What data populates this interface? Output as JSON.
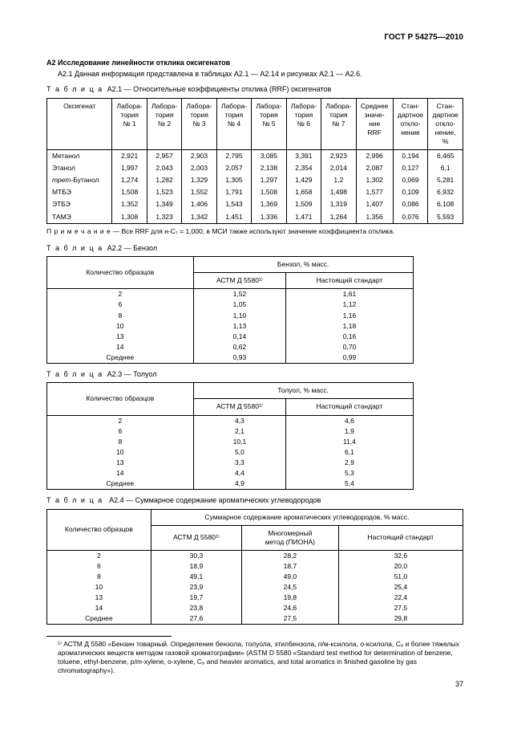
{
  "header": "ГОСТ Р 54275—2010",
  "section": {
    "title": "А2 Исследование линейности отклика оксигенатов",
    "text": "А2.1 Данная информация представлена в таблицах А2.1 — А2.14 и рисунках А2.1 — А2.6."
  },
  "table1": {
    "caption_prefix": "Т а б л и ц а",
    "caption": "А2.1 — Относительные коэффициенты отклика (RRF) оксигенатов",
    "headers": [
      "Оксигенат",
      "Лабора-\nтория\n№ 1",
      "Лабора-\nтория\n№ 2",
      "Лабора-\nтория\n№ 3",
      "Лабора-\nтория\n№ 4",
      "Лабора-\nтория\n№ 5",
      "Лабора-\nтория\n№ 6",
      "Лабора-\nтория\n№ 7",
      "Среднее\nзначе-\nние\nRRF",
      "Стан-\nдартное\nоткло-\nнение",
      "Стан-\nдартное\nоткло-\nнение,\n%"
    ],
    "rows": [
      [
        "Метанол",
        "2,921",
        "2,957",
        "2,903",
        "2,795",
        "3,085",
        "3,391",
        "2,923",
        "2,996",
        "0,194",
        "6,465"
      ],
      [
        "Этанол",
        "1,997",
        "2,043",
        "2,003",
        "2,057",
        "2,138",
        "2,354",
        "2,014",
        "2,087",
        "0,127",
        "6,1"
      ],
      [
        "трет-Бутанол",
        "1,274",
        "1,282",
        "1,329",
        "1,305",
        "1,297",
        "1,429",
        "1,2",
        "1,302",
        "0,069",
        "5,281"
      ],
      [
        "МТБЭ",
        "1,508",
        "1,523",
        "1,552",
        "1,791",
        "1,508",
        "1,658",
        "1,498",
        "1,577",
        "0,109",
        "6,932"
      ],
      [
        "ЭТБЭ",
        "1,352",
        "1,349",
        "1,406",
        "1,543",
        "1,369",
        "1,509",
        "1,319",
        "1,407",
        "0,086",
        "6,108"
      ],
      [
        "ТАМЭ",
        "1,308",
        "1,323",
        "1,342",
        "1,451",
        "1,336",
        "1,471",
        "1,264",
        "1,356",
        "0,076",
        "5,593"
      ]
    ],
    "note_prefix": "П р и м е ч а н и е",
    "note": " — Все RRF  для н-C₇ = 1,000; в МСИ также используют значение коэффициента отклика."
  },
  "table2": {
    "caption_prefix": "Т а б л и ц а",
    "caption": "А2.2 — Бензол",
    "group_header": "Бензол, % масс.",
    "col_header": "Количество образцов",
    "sub_headers": [
      "АСТМ Д 5580¹⁾",
      "Настоящий стандарт"
    ],
    "rows": [
      [
        "2",
        "1,52",
        "1,61"
      ],
      [
        "6",
        "1,05",
        "1,12"
      ],
      [
        "8",
        "1,10",
        "1,16"
      ],
      [
        "10",
        "1,13",
        "1,18"
      ],
      [
        "13",
        "0,14",
        "0,16"
      ],
      [
        "14",
        "0,62",
        "0,70"
      ],
      [
        "Среднее",
        "0,93",
        "0,99"
      ]
    ]
  },
  "table3": {
    "caption_prefix": "Т а б л и ц а",
    "caption": "А2.3 — Толуол",
    "group_header": "Толуол, % масс.",
    "col_header": "Количество образцов",
    "sub_headers": [
      "АСТМ Д 5580¹⁾",
      "Настоящий стандарт"
    ],
    "rows": [
      [
        "2",
        "4,3",
        "4,6"
      ],
      [
        "6",
        "2,1",
        "1,9"
      ],
      [
        "8",
        "10,1",
        "11,4"
      ],
      [
        "10",
        "5,0",
        "6,1"
      ],
      [
        "13",
        "3,3",
        "2,9"
      ],
      [
        "14",
        "4,4",
        "5,3"
      ],
      [
        "Среднее",
        "4,9",
        "5,4"
      ]
    ]
  },
  "table4": {
    "caption_prefix": "Т а б л и ц а",
    "caption": "А2.4 — Суммарное содержание ароматических углеводородов",
    "group_header": "Суммарное содержание ароматических углеводородов, % масс.",
    "col_header": "Количество образцов",
    "sub_headers": [
      "АСТМ Д 5580¹⁾",
      "Многомерный\nметод (ПИОНА)",
      "Настоящий стандарт"
    ],
    "rows": [
      [
        "2",
        "30,3",
        "28,2",
        "32,6"
      ],
      [
        "6",
        "18,9",
        "18,7",
        "20,0"
      ],
      [
        "8",
        "49,1",
        "49,0",
        "51,0"
      ],
      [
        "10",
        "23,9",
        "24,5",
        "25,4"
      ],
      [
        "13",
        "19,7",
        "19,8",
        "22,4"
      ],
      [
        "14",
        "23,8",
        "24,6",
        "27,5"
      ],
      [
        "Среднее",
        "27,6",
        "27,5",
        "29,8"
      ]
    ]
  },
  "footnote": "¹⁾ АСТМ Д 5580 «Бензин товарный. Определение бензола, толуола, этилбензола, п/м-ксилола, о-ксилола, C₉ и более тяжелых ароматических веществ методом газовой хроматографии» (ASTM D 5580 «Standard test method for determination of benzene, toluene, ethyl-benzene, p/m-xylene, o-xylene, C₉ and heavier aromatics, and total aromatics in finished gasoline by gas chromatography»).",
  "pagenum": "37"
}
